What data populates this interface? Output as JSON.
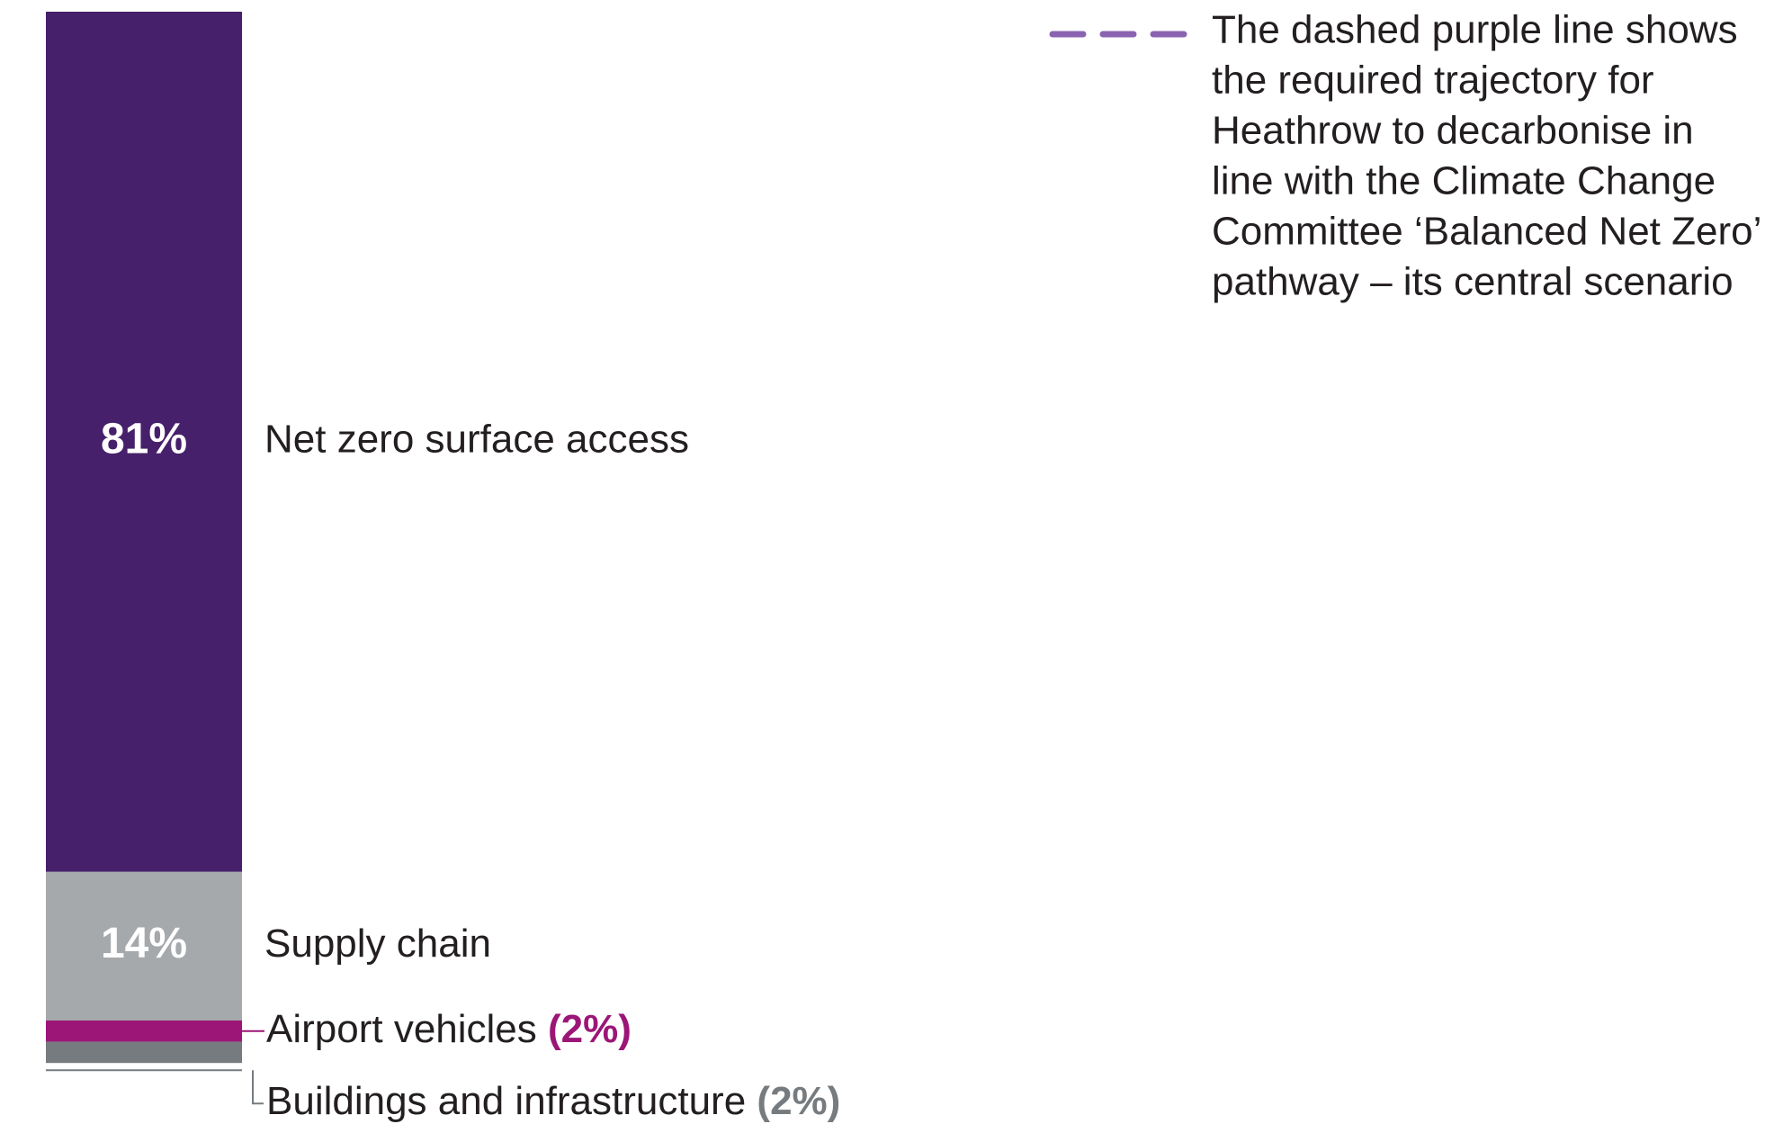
{
  "chart_data": {
    "type": "stacked-bar",
    "series": [
      {
        "name": "Net zero surface access",
        "color": "#46206a",
        "values": [
          81
        ],
        "value_labels": [
          "81%"
        ]
      },
      {
        "name": "Supply chain",
        "color": "#a6a9ac",
        "values": [
          14
        ],
        "value_labels": [
          "14%"
        ]
      },
      {
        "name": "Airport vehicles",
        "color": "#9c1677",
        "values": [
          2
        ],
        "value_labels": [
          "(2%)"
        ]
      },
      {
        "name": "Buildings and infrastructure",
        "color": "#767b7f",
        "values": [
          2
        ],
        "value_labels": [
          "(2%)"
        ]
      }
    ],
    "annotation": {
      "color": "#8a63b0",
      "lines": [
        "The dashed purple line shows",
        "the required trajectory for",
        "Heathrow to decarbonise in",
        "line with the Climate Change",
        "Committee ‘Balanced Net Zero’",
        "pathway – its central scenario"
      ]
    }
  }
}
